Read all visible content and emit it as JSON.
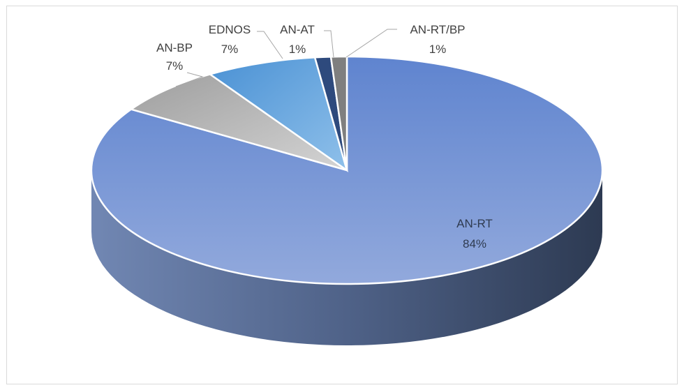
{
  "chart_data": {
    "type": "pie",
    "title": "",
    "style": "3d",
    "slices": [
      {
        "label": "AN-RT",
        "value": 84,
        "value_label": "84%",
        "color": "#7e9fd8"
      },
      {
        "label": "AN-BP",
        "value": 7,
        "value_label": "7%",
        "color": "#bfbfbf"
      },
      {
        "label": "EDNOS",
        "value": 7,
        "value_label": "7%",
        "color": "#6fa8dc"
      },
      {
        "label": "AN-AT",
        "value": 1,
        "value_label": "1%",
        "color": "#2e4a7d"
      },
      {
        "label": "AN-RT/BP",
        "value": 1,
        "value_label": "1%",
        "color": "#7f7f7f"
      }
    ]
  }
}
